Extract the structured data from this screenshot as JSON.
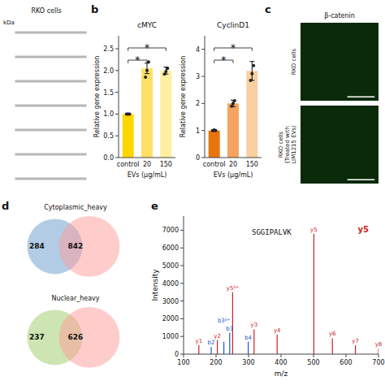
{
  "chart_data": [
    {
      "type": "image",
      "title": "RKO cells",
      "annotations": [
        {
          "text": "kDa"
        }
      ],
      "color": "#999999"
    },
    {
      "type": "bar",
      "title": "cMYC",
      "annotations": [
        {
          "text": "b"
        }
      ],
      "categories": [
        "control",
        "20",
        "150"
      ],
      "values": [
        1.0,
        2.05,
        2.0
      ],
      "errors": [
        0.02,
        0.12,
        0.08
      ],
      "colors": [
        "#FFD700",
        "#FFE066",
        "#FFF0A0"
      ],
      "dots": [
        [
          1.0,
          1.0,
          1.0
        ],
        [
          1.85,
          2.0,
          2.2
        ],
        [
          1.92,
          1.98,
          2.05
        ]
      ],
      "xlabel": "EVs (μg/mL)",
      "ylabel": "Relative gene expression",
      "ylim": [
        0,
        2.8
      ],
      "yticks": [
        {
          "value": 0.0,
          "label": "0.0"
        },
        0.5,
        {
          "value": 1.0,
          "label": "1.0"
        },
        1.5,
        {
          "value": 2.0,
          "label": "2.0"
        },
        2.5
      ],
      "brackets": [
        {
          "from": 0,
          "to": 1,
          "label": "*"
        },
        {
          "from": 0,
          "to": 2,
          "label": "*"
        }
      ]
    },
    {
      "type": "bar",
      "title": "CyclinD1",
      "categories": [
        "control",
        "20",
        "150"
      ],
      "values": [
        1.0,
        2.0,
        3.2
      ],
      "errors": [
        0.03,
        0.12,
        0.35
      ],
      "colors": [
        "#E8740C",
        "#F4A460",
        "#FAD0A0"
      ],
      "dots": [
        [
          1.0,
          1.02,
          1.0
        ],
        [
          1.9,
          2.0,
          2.1
        ],
        [
          2.85,
          3.1,
          3.4
        ]
      ],
      "xlabel": "EVs (μg/mL)",
      "ylabel": "Relative gene expression",
      "ylim": [
        0,
        4.5
      ],
      "yticks": [
        0,
        1,
        2,
        3,
        4
      ],
      "brackets": [
        {
          "from": 0,
          "to": 1,
          "label": "*"
        },
        {
          "from": 0,
          "to": 2,
          "label": "*"
        }
      ]
    },
    {
      "type": "image",
      "title": "β-catenin",
      "annotations": [
        {
          "text": "c"
        }
      ],
      "categories": [
        "RKO cells",
        "RKO cells\n(Treated with\nLIM1215 EVs)"
      ],
      "color": "#0a2a0a"
    },
    {
      "type": "venn",
      "title": "Cytoplasmic_heavy",
      "annotations": [
        {
          "text": "d"
        }
      ],
      "values": [
        284,
        842
      ],
      "colors": [
        "#6699CC",
        "#FF9999"
      ],
      "data_labels": true
    },
    {
      "type": "venn",
      "title": "Nuclear_heavy",
      "values": [
        237,
        626
      ],
      "colors": [
        "#99CC66",
        "#FF9999"
      ],
      "data_labels": true
    },
    {
      "type": "stem",
      "annotations": [
        {
          "text": "e"
        },
        {
          "text": "SGGIPALVK"
        },
        {
          "text": "y5",
          "color": "#CC2222"
        }
      ],
      "x": [
        185,
        242,
        299,
        147,
        204,
        317,
        388,
        501,
        558,
        629,
        700,
        251,
        224
      ],
      "values": [
        400,
        1200,
        700,
        500,
        800,
        1400,
        1100,
        6800,
        900,
        500,
        300,
        3500,
        700
      ],
      "labels": [
        "b2",
        "b3",
        "b4",
        "y1",
        "y2",
        "y3",
        "y4",
        "y5",
        "y6",
        "y7",
        "y8",
        "y5²⁺",
        "b3²⁺"
      ],
      "colors": [
        "#2255CC",
        "#2255CC",
        "#2255CC",
        "#CC2222",
        "#CC2222",
        "#CC2222",
        "#CC2222",
        "#CC2222",
        "#CC2222",
        "#CC2222",
        "#CC2222",
        "#CC2222",
        "#2255CC"
      ],
      "xlabel": "m/z",
      "ylabel": "Intensity",
      "xlim": [
        100,
        700
      ],
      "xticks": [
        100,
        200,
        300,
        400,
        500,
        600,
        700
      ],
      "ylim": [
        0,
        7800
      ],
      "yticks": [
        0,
        1000,
        2000,
        3000,
        4000,
        5000,
        6000,
        7000
      ]
    }
  ]
}
